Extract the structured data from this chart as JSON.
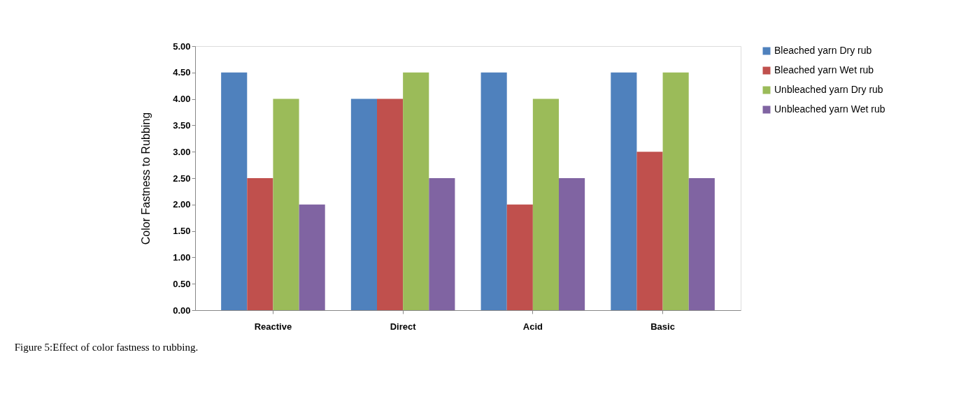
{
  "chart_data": {
    "type": "bar",
    "ylabel": "Color Fastness to Rubbing",
    "categories": [
      "Reactive",
      "Direct",
      "Acid",
      "Basic"
    ],
    "series": [
      {
        "name": "Bleached yarn Dry rub",
        "color": "#4f81bd",
        "values": [
          4.5,
          4.0,
          4.5,
          4.5
        ]
      },
      {
        "name": "Bleached yarn Wet rub",
        "color": "#c0504d",
        "values": [
          2.5,
          4.0,
          2.0,
          3.0
        ]
      },
      {
        "name": "Unbleached yarn Dry rub",
        "color": "#9bbb59",
        "values": [
          4.0,
          4.5,
          4.0,
          4.5
        ]
      },
      {
        "name": "Unbleached yarn Wet rub",
        "color": "#8064a2",
        "values": [
          2.0,
          2.5,
          2.5,
          2.5
        ]
      }
    ],
    "ylim": [
      0,
      5
    ],
    "yticks": [
      {
        "value": 0,
        "label": "0.00"
      },
      {
        "value": 0.5,
        "label": "0.50"
      },
      {
        "value": 1,
        "label": "1.00"
      },
      {
        "value": 1.5,
        "label": "1.50"
      },
      {
        "value": 2,
        "label": "2.00"
      },
      {
        "value": 2.5,
        "label": "2.50"
      },
      {
        "value": 3,
        "label": "3.00"
      },
      {
        "value": 3.5,
        "label": "3.50"
      },
      {
        "value": 4,
        "label": "4.00"
      },
      {
        "value": 4.5,
        "label": "4.50"
      },
      {
        "value": 5,
        "label": "5.00"
      }
    ],
    "grid": false,
    "legend": "right",
    "annotations": [
      "Figure 5:Effect of color fastness to rubbing."
    ]
  }
}
